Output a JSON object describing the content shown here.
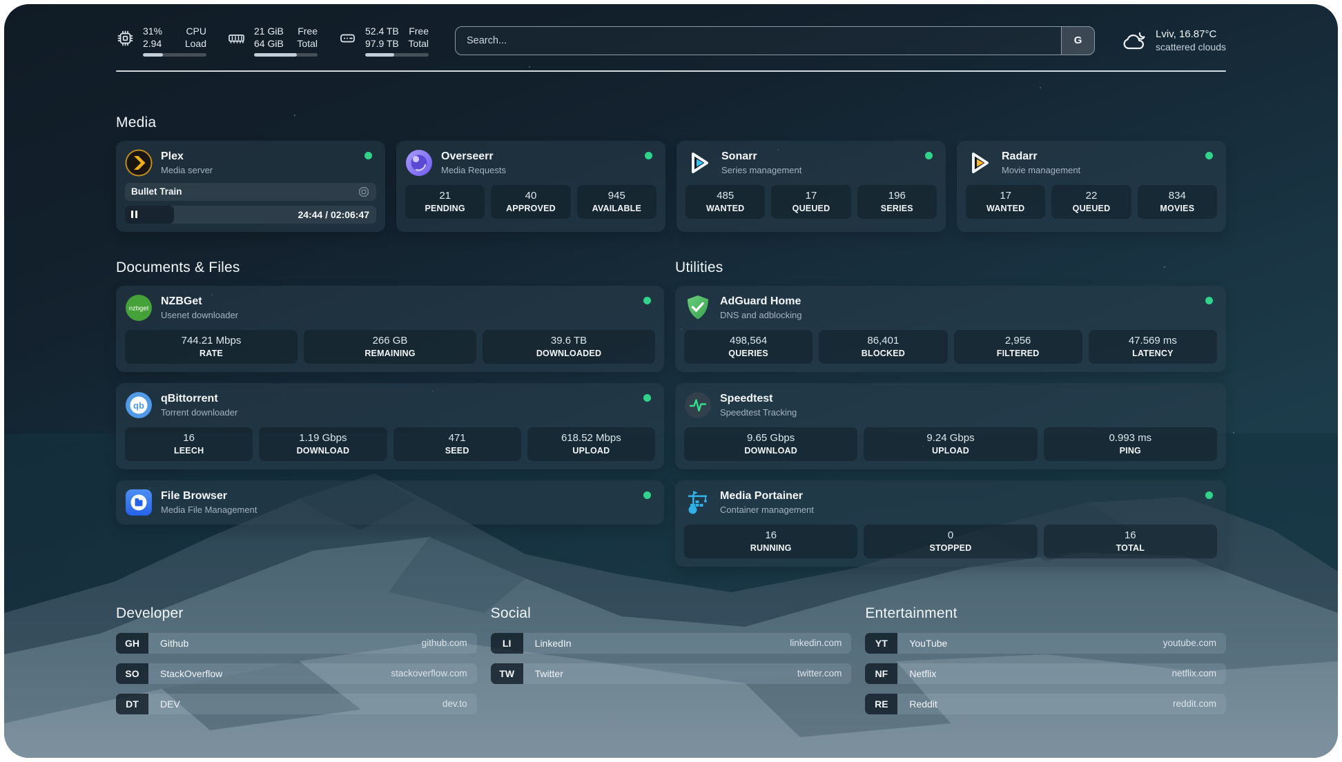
{
  "colors": {
    "status_online": "#2ed48a",
    "plex_accent": "#efaf0e",
    "sonarr_accent": "#35c5f4",
    "radarr_accent": "#ffb527"
  },
  "header": {
    "resources": [
      {
        "icon": "cpu-icon",
        "values": [
          "31%",
          "2.94"
        ],
        "labels": [
          "CPU",
          "Load"
        ],
        "progress_pct": 31
      },
      {
        "icon": "memory-icon",
        "values": [
          "21 GiB",
          "64 GiB"
        ],
        "labels": [
          "Free",
          "Total"
        ],
        "progress_pct": 67
      },
      {
        "icon": "disk-icon",
        "values": [
          "52.4 TB",
          "97.9 TB"
        ],
        "labels": [
          "Free",
          "Total"
        ],
        "progress_pct": 46
      }
    ],
    "search": {
      "placeholder": "Search...",
      "button_label": "G"
    },
    "weather": {
      "location": "Lviv, 16.87°C",
      "condition": "scattered clouds"
    }
  },
  "sections": {
    "media": {
      "title": "Media",
      "plex": {
        "title": "Plex",
        "subtitle": "Media server",
        "now_playing": "Bullet Train",
        "time": "24:44 / 02:06:47",
        "progress_pct": 19.5
      },
      "overseerr": {
        "title": "Overseerr",
        "subtitle": "Media Requests",
        "stats": [
          {
            "value": "21",
            "label": "PENDING"
          },
          {
            "value": "40",
            "label": "APPROVED"
          },
          {
            "value": "945",
            "label": "AVAILABLE"
          }
        ]
      },
      "sonarr": {
        "title": "Sonarr",
        "subtitle": "Series management",
        "stats": [
          {
            "value": "485",
            "label": "WANTED"
          },
          {
            "value": "17",
            "label": "QUEUED"
          },
          {
            "value": "196",
            "label": "SERIES"
          }
        ]
      },
      "radarr": {
        "title": "Radarr",
        "subtitle": "Movie management",
        "stats": [
          {
            "value": "17",
            "label": "WANTED"
          },
          {
            "value": "22",
            "label": "QUEUED"
          },
          {
            "value": "834",
            "label": "MOVIES"
          }
        ]
      }
    },
    "files": {
      "title": "Documents & Files",
      "nzbget": {
        "title": "NZBGet",
        "subtitle": "Usenet downloader",
        "stats": [
          {
            "value": "744.21 Mbps",
            "label": "RATE"
          },
          {
            "value": "266 GB",
            "label": "REMAINING"
          },
          {
            "value": "39.6 TB",
            "label": "DOWNLOADED"
          }
        ]
      },
      "qbittorrent": {
        "title": "qBittorrent",
        "subtitle": "Torrent downloader",
        "stats": [
          {
            "value": "16",
            "label": "LEECH"
          },
          {
            "value": "1.19 Gbps",
            "label": "DOWNLOAD"
          },
          {
            "value": "471",
            "label": "SEED"
          },
          {
            "value": "618.52 Mbps",
            "label": "UPLOAD"
          }
        ]
      },
      "filebrowser": {
        "title": "File Browser",
        "subtitle": "Media File Management"
      }
    },
    "utilities": {
      "title": "Utilities",
      "adguard": {
        "title": "AdGuard Home",
        "subtitle": "DNS and adblocking",
        "stats": [
          {
            "value": "498,564",
            "label": "QUERIES"
          },
          {
            "value": "86,401",
            "label": "BLOCKED"
          },
          {
            "value": "2,956",
            "label": "FILTERED"
          },
          {
            "value": "47.569 ms",
            "label": "LATENCY"
          }
        ]
      },
      "speedtest": {
        "title": "Speedtest",
        "subtitle": "Speedtest Tracking",
        "stats": [
          {
            "value": "9.65 Gbps",
            "label": "DOWNLOAD"
          },
          {
            "value": "9.24 Gbps",
            "label": "UPLOAD"
          },
          {
            "value": "0.993 ms",
            "label": "PING"
          }
        ]
      },
      "portainer": {
        "title": "Media Portainer",
        "subtitle": "Container management",
        "stats": [
          {
            "value": "16",
            "label": "RUNNING"
          },
          {
            "value": "0",
            "label": "STOPPED"
          },
          {
            "value": "16",
            "label": "TOTAL"
          }
        ]
      }
    },
    "bookmarks": {
      "developer": {
        "title": "Developer",
        "links": [
          {
            "abbr": "GH",
            "name": "Github",
            "domain": "github.com"
          },
          {
            "abbr": "SO",
            "name": "StackOverflow",
            "domain": "stackoverflow.com"
          },
          {
            "abbr": "DT",
            "name": "DEV",
            "domain": "dev.to"
          }
        ]
      },
      "social": {
        "title": "Social",
        "links": [
          {
            "abbr": "LI",
            "name": "LinkedIn",
            "domain": "linkedin.com"
          },
          {
            "abbr": "TW",
            "name": "Twitter",
            "domain": "twitter.com"
          }
        ]
      },
      "entertainment": {
        "title": "Entertainment",
        "links": [
          {
            "abbr": "YT",
            "name": "YouTube",
            "domain": "youtube.com"
          },
          {
            "abbr": "NF",
            "name": "Netflix",
            "domain": "netflix.com"
          },
          {
            "abbr": "RE",
            "name": "Reddit",
            "domain": "reddit.com"
          }
        ]
      }
    }
  }
}
